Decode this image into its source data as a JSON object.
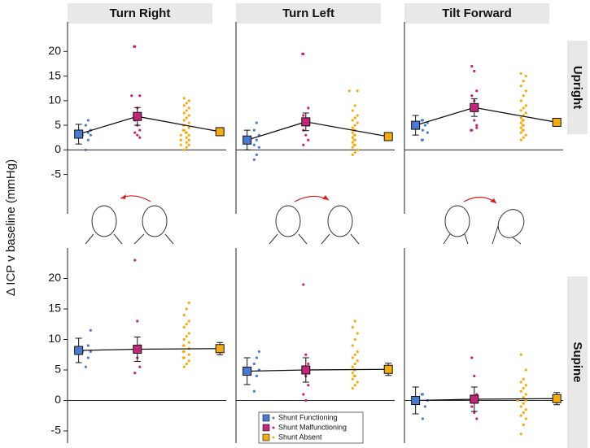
{
  "chart_data": {
    "type": "strip",
    "ylabel": "Δ ICP v baseline (mmHg)",
    "columns": [
      "Turn Right",
      "Turn Left",
      "Tilt Forward"
    ],
    "rows": [
      {
        "label": "Upright",
        "ylim": [
          -13,
          26
        ]
      },
      {
        "label": "Supine",
        "ylim": [
          -7,
          25
        ]
      }
    ],
    "yticks": [
      -5,
      0,
      5,
      10,
      15,
      20
    ],
    "series": [
      {
        "name": "Shunt Functioning",
        "color": "#4a7bd0"
      },
      {
        "name": "Shunt Malfunctioning",
        "color": "#c2267a"
      },
      {
        "name": "Shunt Absent",
        "color": "#f2ac12"
      }
    ],
    "panels": [
      {
        "column": 0,
        "row": 0,
        "means": [
          3.2,
          6.8,
          3.7
        ],
        "errors": [
          2,
          1.8,
          0.8
        ],
        "points": [
          [
            0,
            2,
            3,
            3,
            3.5,
            4,
            5,
            6
          ],
          [
            21,
            21,
            11,
            11,
            8.5,
            7,
            6,
            5,
            4,
            3.5,
            3,
            2.5
          ],
          [
            0,
            0.5,
            1,
            1,
            1.5,
            2,
            2,
            2.5,
            3,
            3,
            3.5,
            3.5,
            4,
            4,
            4.5,
            5,
            5,
            5.5,
            6,
            6.5,
            7,
            7.5,
            8,
            8.5,
            9,
            9.5,
            10,
            10.5
          ]
        ]
      },
      {
        "column": 1,
        "row": 0,
        "means": [
          2.0,
          5.7,
          2.7
        ],
        "errors": [
          2,
          1.8,
          0.8
        ],
        "points": [
          [
            -2,
            -1,
            0.5,
            1,
            2,
            3,
            4,
            5.5
          ],
          [
            19.5,
            19.5,
            8.5,
            7,
            6,
            5,
            4,
            3,
            2,
            1
          ],
          [
            -1,
            -0.5,
            0,
            0.5,
            1,
            1,
            1.5,
            2,
            2,
            2.5,
            3,
            3,
            3.5,
            4,
            4,
            4.5,
            5,
            5.5,
            6,
            6.5,
            7,
            8,
            9,
            12,
            12
          ]
        ]
      },
      {
        "column": 2,
        "row": 0,
        "means": [
          5.0,
          8.6,
          5.6
        ],
        "errors": [
          2,
          1.8,
          0.8
        ],
        "points": [
          [
            2,
            2,
            3.5,
            4,
            5,
            5.5,
            6,
            6
          ],
          [
            17,
            16,
            12,
            11,
            10,
            9,
            8,
            6,
            5,
            4,
            4,
            4.5
          ],
          [
            2,
            2.5,
            3,
            3.5,
            4,
            4,
            4.5,
            5,
            5,
            5.5,
            6,
            6,
            6.5,
            7,
            7.5,
            8,
            8.5,
            9,
            10,
            11,
            12,
            13,
            14,
            15,
            15.5
          ]
        ]
      },
      {
        "column": 0,
        "row": 1,
        "means": [
          8.2,
          8.4,
          8.5
        ],
        "errors": [
          2,
          2,
          1
        ],
        "points": [
          [
            5.5,
            7,
            8,
            8,
            9,
            11.5
          ],
          [
            23,
            13,
            9,
            8,
            7,
            5.5,
            4.5
          ],
          [
            5.5,
            6,
            6.5,
            7,
            7,
            7.5,
            8,
            8,
            8.5,
            9,
            9,
            9.5,
            10,
            10.5,
            11,
            12,
            12.5,
            13,
            14,
            15,
            16
          ]
        ]
      },
      {
        "column": 1,
        "row": 1,
        "means": [
          4.8,
          5.0,
          5.1
        ],
        "errors": [
          2.2,
          2,
          1
        ],
        "points": [
          [
            1.5,
            4,
            5,
            6,
            7,
            8
          ],
          [
            19,
            7.5,
            6,
            5,
            4,
            2.5,
            1,
            0
          ],
          [
            2,
            2.5,
            3,
            3.5,
            4,
            4,
            4.5,
            5,
            5,
            5.5,
            6,
            6.5,
            7,
            7.5,
            8,
            9,
            10,
            11,
            12,
            13
          ]
        ]
      },
      {
        "column": 2,
        "row": 1,
        "means": [
          0,
          0.2,
          0.3
        ],
        "errors": [
          2.2,
          2,
          1
        ],
        "points": [
          [
            -3,
            -1,
            0,
            1,
            1
          ],
          [
            7,
            4,
            1,
            -1,
            -2,
            -3
          ],
          [
            -5.5,
            -4,
            -3,
            -2.5,
            -2,
            -1.5,
            -1,
            -0.5,
            0,
            0,
            0.5,
            1,
            1.5,
            2,
            2.5,
            3,
            3.5,
            5,
            7.5
          ]
        ]
      }
    ]
  }
}
